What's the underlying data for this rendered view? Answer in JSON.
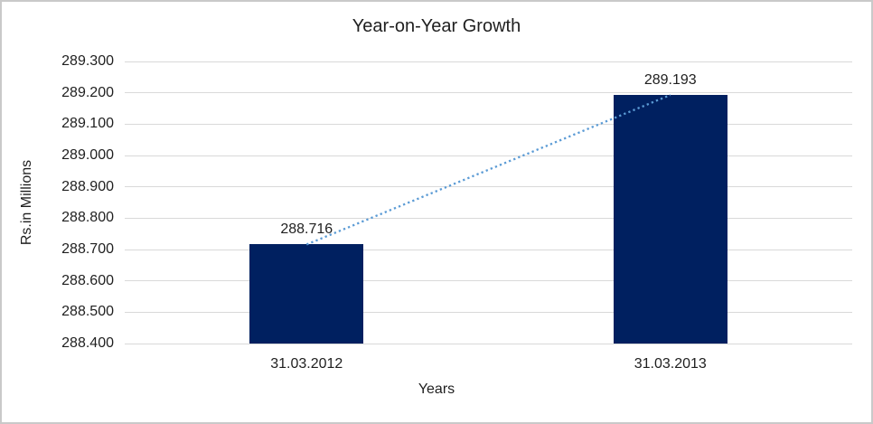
{
  "frame": {
    "background": "#ffffff",
    "border_color": "#c9c9c9"
  },
  "chart_data": {
    "type": "bar",
    "title": "Year-on-Year Growth",
    "xlabel": "Years",
    "ylabel": "Rs.in Millions",
    "categories": [
      "31.03.2012",
      "31.03.2013"
    ],
    "values": [
      288.716,
      289.193
    ],
    "value_labels": [
      "288.716",
      "289.193"
    ],
    "ylim": [
      288.4,
      289.3
    ],
    "ytick_step": 0.1,
    "ytick_labels": [
      "288.400",
      "288.500",
      "288.600",
      "288.700",
      "288.800",
      "288.900",
      "289.000",
      "289.100",
      "289.200",
      "289.300"
    ],
    "grid": "horizontal-only",
    "legend": "none",
    "bar_color": "#002060",
    "gridline_color": "#d9d9d9",
    "text_color": "#1f1f1f",
    "trendline": {
      "style": "dotted",
      "color": "#5b9bd5",
      "connects": [
        "31.03.2012",
        "31.03.2013"
      ]
    }
  }
}
